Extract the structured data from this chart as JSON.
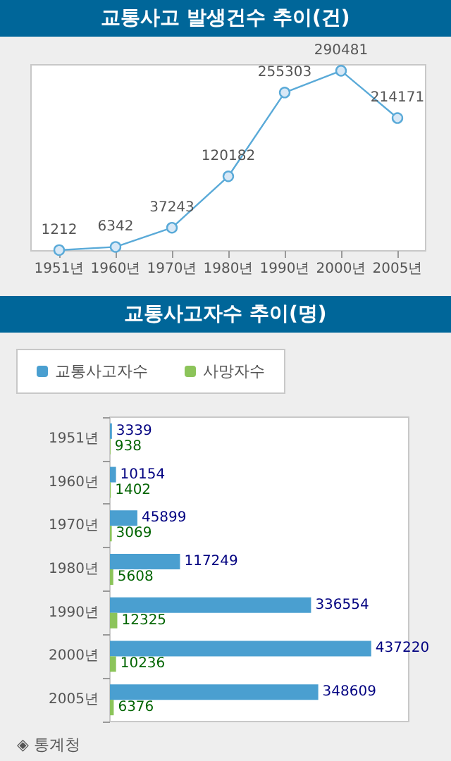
{
  "chart_data": [
    {
      "type": "line",
      "title": "교통사고 발생건수 추이(건)",
      "categories": [
        "1951년",
        "1960년",
        "1970년",
        "1980년",
        "1990년",
        "2000년",
        "2005년"
      ],
      "series": [
        {
          "color": "#5aaad8",
          "values": [
            1212,
            6342,
            37243,
            120182,
            255303,
            290481,
            214171
          ]
        }
      ],
      "data_labels": true,
      "marker": "circle",
      "tick_labels": "x"
    },
    {
      "type": "bar",
      "orientation": "horizontal",
      "title": "교통사고자수 추이(명)",
      "categories": [
        "1951년",
        "1960년",
        "1970년",
        "1980년",
        "1990년",
        "2000년",
        "2005년"
      ],
      "series": [
        {
          "name": "교통사고자수",
          "color": "#4a9fd0",
          "values": [
            3339,
            10154,
            45899,
            117249,
            336554,
            437220,
            348609
          ]
        },
        {
          "name": "사망자수",
          "color": "#8cc45a",
          "values": [
            938,
            1402,
            3069,
            5608,
            12325,
            10236,
            6376
          ]
        }
      ],
      "data_labels": true,
      "legend": "top left",
      "tick_labels": "y",
      "annotations": [
        "◈ 통계청"
      ]
    }
  ]
}
